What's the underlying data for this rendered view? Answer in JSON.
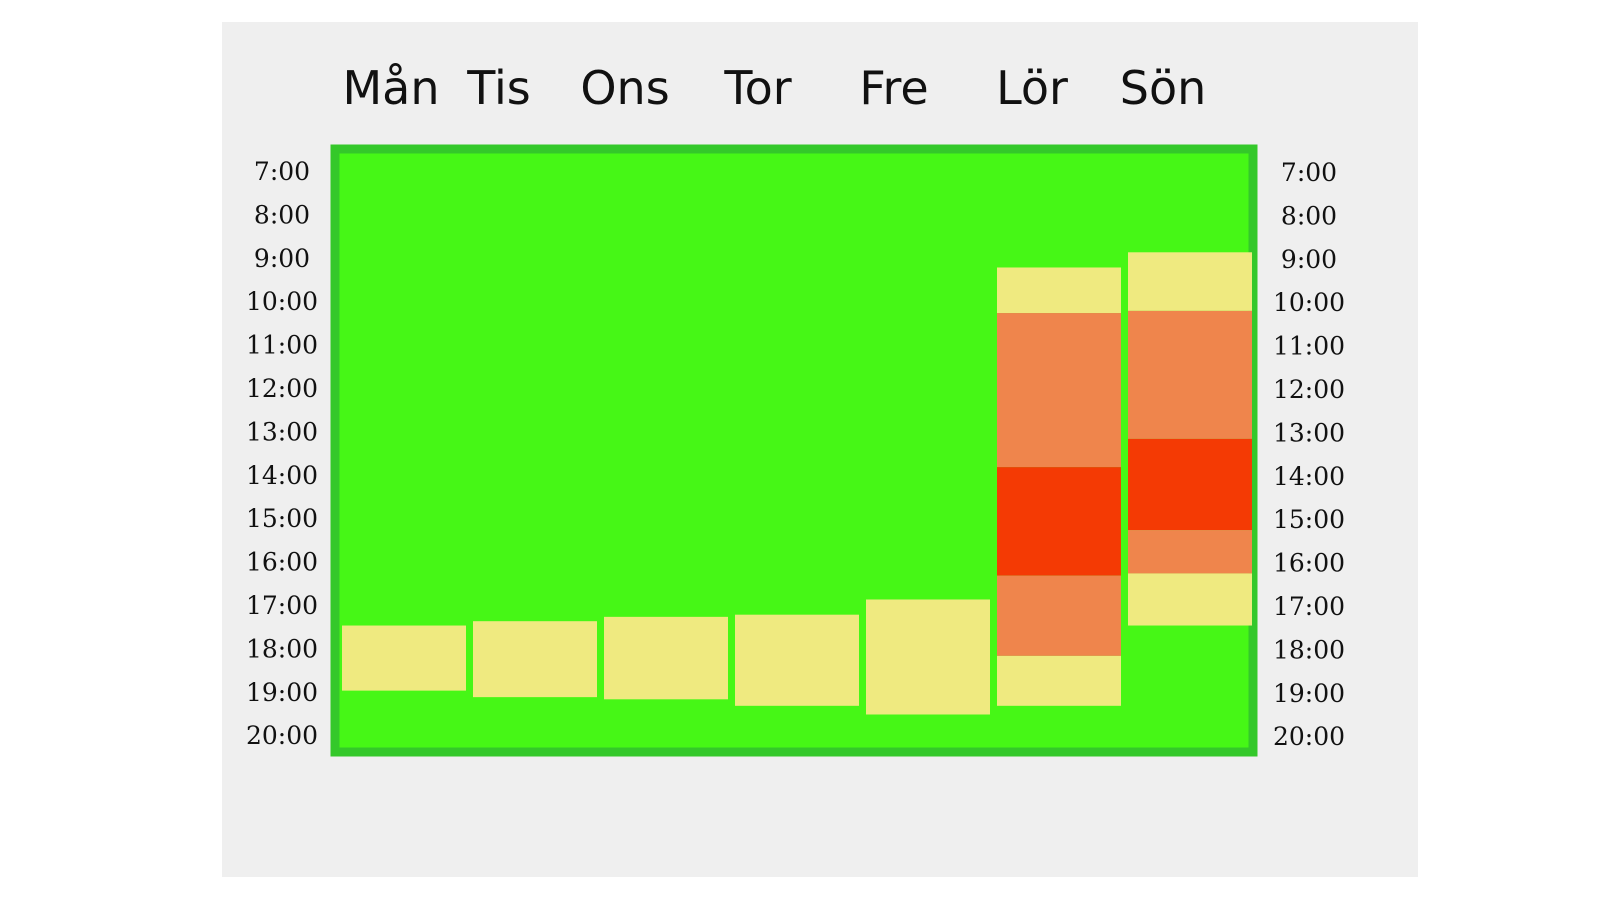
{
  "chart_data": {
    "type": "heatmap",
    "title": "",
    "xlabel": "",
    "ylabel": "",
    "days": [
      "Mån",
      "Tis",
      "Ons",
      "Tor",
      "Fre",
      "Lör",
      "Sön"
    ],
    "time_labels": [
      "7:00",
      "8:00",
      "9:00",
      "10:00",
      "11:00",
      "12:00",
      "13:00",
      "14:00",
      "15:00",
      "16:00",
      "17:00",
      "18:00",
      "19:00",
      "20:00"
    ],
    "y_range_hours": [
      7,
      20
    ],
    "colors": {
      "panel_bg": "#efefef",
      "border": "#34c82a",
      "free": "#46f716",
      "light": "#efea80",
      "medium": "#ef854c",
      "high": "#f43a04"
    },
    "blocks": [
      {
        "day": "Mån",
        "level": "light",
        "start": 17.45,
        "end": 18.95
      },
      {
        "day": "Tis",
        "level": "light",
        "start": 17.35,
        "end": 19.1
      },
      {
        "day": "Ons",
        "level": "light",
        "start": 17.25,
        "end": 19.15
      },
      {
        "day": "Tor",
        "level": "light",
        "start": 17.2,
        "end": 19.3
      },
      {
        "day": "Fre",
        "level": "light",
        "start": 16.85,
        "end": 19.5
      },
      {
        "day": "Lör",
        "level": "light",
        "start": 9.2,
        "end": 10.25
      },
      {
        "day": "Lör",
        "level": "medium",
        "start": 10.25,
        "end": 13.8
      },
      {
        "day": "Lör",
        "level": "high",
        "start": 13.8,
        "end": 16.3
      },
      {
        "day": "Lör",
        "level": "medium",
        "start": 16.3,
        "end": 18.15
      },
      {
        "day": "Lör",
        "level": "light",
        "start": 18.15,
        "end": 19.3
      },
      {
        "day": "Sön",
        "level": "light",
        "start": 8.85,
        "end": 10.2
      },
      {
        "day": "Sön",
        "level": "medium",
        "start": 10.2,
        "end": 13.15
      },
      {
        "day": "Sön",
        "level": "high",
        "start": 13.15,
        "end": 15.25
      },
      {
        "day": "Sön",
        "level": "medium",
        "start": 15.25,
        "end": 16.25
      },
      {
        "day": "Sön",
        "level": "light",
        "start": 16.25,
        "end": 17.45
      }
    ]
  }
}
